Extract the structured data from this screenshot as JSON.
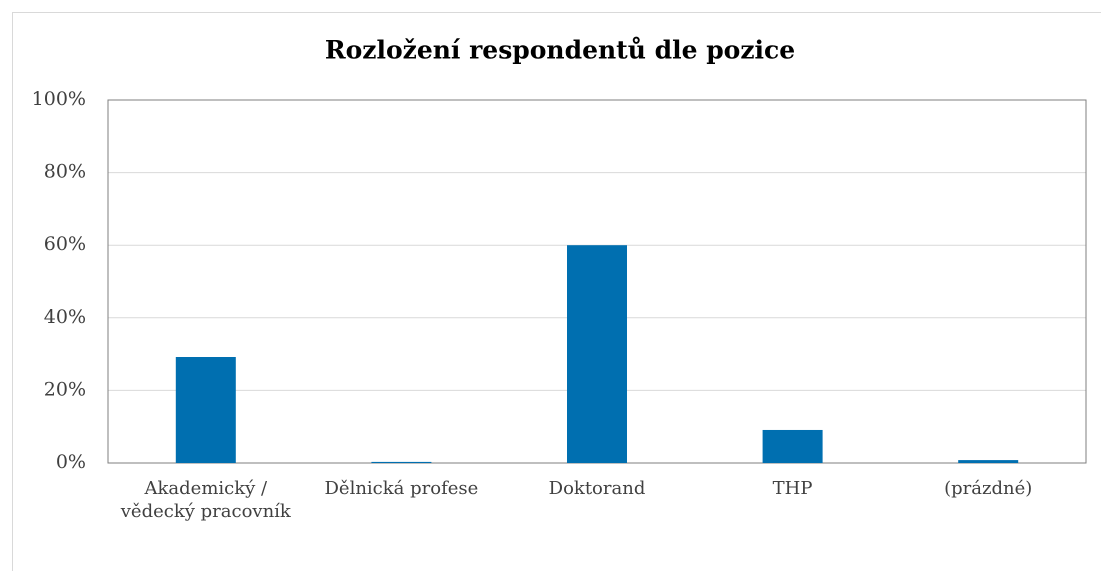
{
  "chart_data": {
    "type": "bar",
    "title": "Rozložení respondentů dle pozice",
    "categories": [
      "Akademický / vědecký pracovník",
      "Dělnická profese",
      "Doktorand",
      "THP",
      "(prázdné)"
    ],
    "values": [
      29.2,
      0.3,
      60,
      9.1,
      0.8
    ],
    "color": "#006fb0",
    "ylim": [
      0,
      100
    ],
    "yticks": [
      {
        "value": 0,
        "label": "0%"
      },
      {
        "value": 20,
        "label": "20%"
      },
      {
        "value": 40,
        "label": "40%"
      },
      {
        "value": 60,
        "label": "60%"
      },
      {
        "value": 80,
        "label": "80%"
      },
      {
        "value": 100,
        "label": "100%"
      }
    ],
    "grid": true
  }
}
